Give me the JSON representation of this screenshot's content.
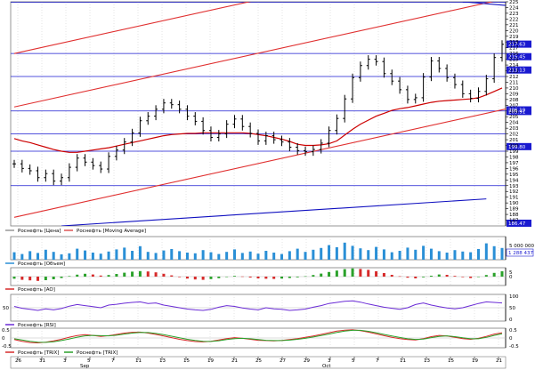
{
  "chart_data": [
    {
      "type": "line",
      "name": "price",
      "legend": [
        "Роснефть [Цена]",
        "Роснефть [Moving Average]"
      ],
      "ylim": [
        186,
        225
      ],
      "y_ticks": [
        187,
        188,
        189,
        190,
        191,
        192,
        193,
        194,
        195,
        196,
        197,
        198,
        199,
        200,
        201,
        202,
        203,
        204,
        205,
        206,
        207,
        208,
        209,
        210,
        211,
        212,
        213,
        214,
        215,
        216,
        217,
        218,
        219,
        220,
        221,
        222,
        223,
        224,
        225
      ],
      "price_tags": [
        "217.63",
        "215.45",
        "213.13",
        "206.19",
        "205.91",
        "199.80",
        "186.47"
      ],
      "hlines": [
        224.9,
        216.0,
        212.0,
        206.0,
        202.0,
        199.0,
        193.0
      ],
      "upper_channel": {
        "x": [
          0,
          63
        ],
        "y": [
          216.0,
          235.0
        ]
      },
      "upper_channel_2": {
        "x": [
          0,
          63
        ],
        "y": [
          206.7,
          225.7
        ]
      },
      "lower_channel": {
        "x": [
          0,
          63
        ],
        "y": [
          187.5,
          206.5
        ]
      },
      "blue_trendline": {
        "x": [
          6,
          60
        ],
        "y": [
          186.0,
          190.7
        ]
      },
      "blue_top_line": {
        "x": [
          57,
          63
        ],
        "y": [
          225.0,
          224.3
        ]
      },
      "close": [
        196.8,
        196.0,
        195.6,
        194.4,
        195.1,
        193.8,
        194.4,
        196.2,
        197.8,
        197.1,
        196.5,
        195.9,
        198.1,
        199.2,
        200.6,
        202.2,
        204.3,
        205.1,
        206.3,
        207.4,
        207.1,
        206.3,
        205.1,
        204.2,
        202.6,
        201.4,
        202.0,
        203.7,
        204.6,
        203.3,
        202.1,
        200.8,
        201.7,
        201.0,
        200.6,
        199.7,
        199.1,
        198.9,
        199.3,
        200.4,
        202.6,
        204.7,
        208.1,
        211.8,
        213.9,
        215.0,
        214.6,
        212.5,
        211.2,
        209.7,
        208.0,
        208.3,
        211.9,
        214.7,
        213.4,
        211.8,
        210.6,
        209.0,
        208.2,
        209.4,
        211.6,
        215.3,
        217.6
      ],
      "ma": [
        201.2,
        200.8,
        200.5,
        200.1,
        199.7,
        199.3,
        199.0,
        198.8,
        198.8,
        199.0,
        199.2,
        199.4,
        199.6,
        199.9,
        200.2,
        200.5,
        200.8,
        201.1,
        201.4,
        201.7,
        201.9,
        202.0,
        202.1,
        202.1,
        202.2,
        202.2,
        202.2,
        202.2,
        202.2,
        202.2,
        202.1,
        201.9,
        201.7,
        201.4,
        201.1,
        200.7,
        200.2,
        200.0,
        200.0,
        200.1,
        200.3,
        200.8,
        201.8,
        202.8,
        203.7,
        204.4,
        205.1,
        205.6,
        206.1,
        206.4,
        206.6,
        206.9,
        207.2,
        207.5,
        207.7,
        207.8,
        207.9,
        208.0,
        208.1,
        208.3,
        208.8,
        209.4,
        210.0
      ]
    },
    {
      "type": "bar",
      "name": "volume",
      "legend": [
        "Роснефть [Объем]"
      ],
      "ylim": [
        0,
        10000000
      ],
      "y_ticks_labels": [
        "5 000 000"
      ],
      "price_tag": "1 288 437",
      "values": [
        2.1,
        1.6,
        2.4,
        1.9,
        2.8,
        2.2,
        1.5,
        1.8,
        3.1,
        2.6,
        2.0,
        1.7,
        2.3,
        2.9,
        3.4,
        2.5,
        3.8,
        2.2,
        1.9,
        2.6,
        3.0,
        2.4,
        2.0,
        1.8,
        2.7,
        2.1,
        1.6,
        2.2,
        2.9,
        1.9,
        2.3,
        1.7,
        2.5,
        2.0,
        1.6,
        2.4,
        3.1,
        2.2,
        2.8,
        3.3,
        4.1,
        3.5,
        4.8,
        3.9,
        3.2,
        2.7,
        3.6,
        2.9,
        2.1,
        2.5,
        3.4,
        2.8,
        3.9,
        3.1,
        2.4,
        2.0,
        2.7,
        2.3,
        2.1,
        3.0,
        4.6,
        3.8,
        3.3
      ]
    },
    {
      "type": "bar",
      "name": "ao",
      "legend": [
        "Роснефть [AO]"
      ],
      "y_ticks_labels": [
        "5",
        "0"
      ],
      "values": [
        -1.2,
        -1.8,
        -2.1,
        -2.4,
        -2.0,
        -1.5,
        -0.8,
        0.3,
        1.1,
        1.6,
        1.2,
        0.6,
        0.9,
        1.5,
        2.2,
        2.8,
        3.1,
        2.9,
        2.4,
        1.6,
        0.7,
        -0.3,
        -1.1,
        -1.6,
        -1.8,
        -1.4,
        -0.9,
        -0.2,
        0.4,
        0.1,
        -0.5,
        -1.0,
        -1.2,
        -1.3,
        -1.1,
        -0.8,
        -0.4,
        0.2,
        0.9,
        1.7,
        2.6,
        3.4,
        4.2,
        4.6,
        4.3,
        3.8,
        3.0,
        2.0,
        1.0,
        0.2,
        -0.6,
        -1.0,
        -0.4,
        0.5,
        1.2,
        1.0,
        0.4,
        -0.3,
        -0.8,
        -0.2,
        0.9,
        2.1,
        3.0
      ]
    },
    {
      "type": "line",
      "name": "rsi",
      "legend": [
        "Роснефть [RSI]"
      ],
      "ylim": [
        0,
        100
      ],
      "y_ticks_labels": [
        "100",
        "50",
        "0"
      ],
      "values": [
        55,
        48,
        44,
        40,
        46,
        42,
        47,
        56,
        62,
        58,
        54,
        50,
        60,
        63,
        67,
        70,
        72,
        66,
        68,
        60,
        55,
        50,
        45,
        42,
        40,
        44,
        52,
        58,
        55,
        49,
        45,
        42,
        50,
        46,
        44,
        40,
        42,
        45,
        52,
        58,
        66,
        70,
        74,
        76,
        71,
        64,
        58,
        52,
        48,
        44,
        50,
        62,
        68,
        60,
        54,
        49,
        46,
        50,
        58,
        66,
        72,
        70,
        68
      ]
    },
    {
      "type": "line",
      "name": "trix",
      "legend": [
        "Роснефть [TRIX]",
        "Роснефть [TRIX]"
      ],
      "y_ticks_labels": [
        "0.5",
        "0",
        "-0.5"
      ],
      "series": [
        {
          "values": [
            -0.1,
            -0.2,
            -0.28,
            -0.3,
            -0.26,
            -0.18,
            -0.08,
            0.05,
            0.15,
            0.2,
            0.16,
            0.1,
            0.14,
            0.22,
            0.3,
            0.35,
            0.36,
            0.3,
            0.22,
            0.12,
            0.02,
            -0.08,
            -0.16,
            -0.22,
            -0.24,
            -0.2,
            -0.12,
            -0.04,
            0.02,
            -0.02,
            -0.08,
            -0.14,
            -0.16,
            -0.18,
            -0.15,
            -0.1,
            -0.04,
            0.04,
            0.12,
            0.22,
            0.32,
            0.42,
            0.48,
            0.5,
            0.45,
            0.36,
            0.25,
            0.14,
            0.04,
            -0.04,
            -0.1,
            -0.12,
            -0.04,
            0.08,
            0.16,
            0.12,
            0.04,
            -0.04,
            -0.08,
            -0.02,
            0.1,
            0.24,
            0.32
          ]
        },
        {
          "values": [
            -0.05,
            -0.12,
            -0.2,
            -0.26,
            -0.27,
            -0.23,
            -0.16,
            -0.06,
            0.05,
            0.13,
            0.16,
            0.14,
            0.13,
            0.17,
            0.24,
            0.3,
            0.34,
            0.33,
            0.28,
            0.2,
            0.11,
            0.01,
            -0.08,
            -0.15,
            -0.2,
            -0.21,
            -0.17,
            -0.1,
            -0.04,
            -0.02,
            -0.05,
            -0.1,
            -0.14,
            -0.16,
            -0.16,
            -0.13,
            -0.08,
            -0.02,
            0.06,
            0.15,
            0.24,
            0.34,
            0.42,
            0.47,
            0.47,
            0.41,
            0.32,
            0.22,
            0.12,
            0.03,
            -0.05,
            -0.09,
            -0.07,
            0.02,
            0.1,
            0.13,
            0.08,
            0.01,
            -0.05,
            -0.05,
            0.04,
            0.16,
            0.26
          ]
        }
      ]
    }
  ],
  "x_axis": {
    "day_labels": [
      "26",
      "31",
      "3",
      "5",
      "7",
      "11",
      "13",
      "15",
      "19",
      "21",
      "25",
      "27",
      "29",
      "3",
      "5",
      "7",
      "11",
      "13",
      "15",
      "19",
      "21"
    ],
    "month_labels": [
      "Sep",
      "Oct"
    ]
  },
  "colors": {
    "price": "#000000",
    "ma": "#cc0000",
    "channel": "#e03030",
    "trend": "#1010c0",
    "hline": "#1a1ad0",
    "tag_bg": "#1a1ad0",
    "volume": "#2a8fd6",
    "rsi": "#6a2bd6",
    "trix1": "#d62a2a",
    "trix2": "#2aa12a",
    "ao_up": "#2aa12a",
    "ao_down": "#d62a2a"
  }
}
